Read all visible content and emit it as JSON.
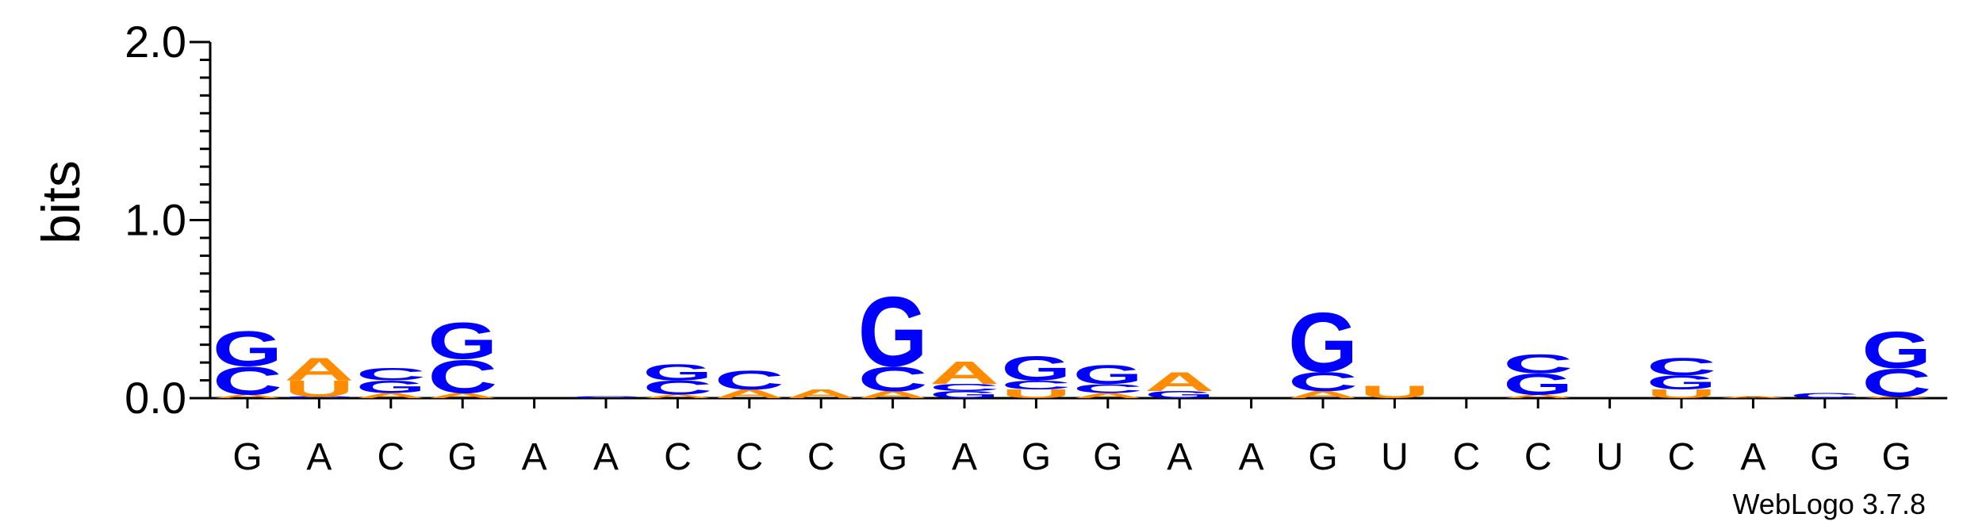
{
  "chart_data": {
    "type": "sequence-logo",
    "ylabel": "bits",
    "ylim": [
      0,
      2.0
    ],
    "yticks": [
      {
        "value": 0.0,
        "label": "0.0"
      },
      {
        "value": 1.0,
        "label": "1.0"
      },
      {
        "value": 2.0,
        "label": "2.0"
      }
    ],
    "minor_tick_step": 0.1,
    "colors": {
      "A": "#ff8c00",
      "U": "#ff8c00",
      "C": "#0000ff",
      "G": "#0000ff"
    },
    "consensus": [
      "G",
      "A",
      "C",
      "G",
      "A",
      "A",
      "C",
      "C",
      "C",
      "G",
      "A",
      "G",
      "G",
      "A",
      "A",
      "G",
      "U",
      "C",
      "C",
      "U",
      "C",
      "A",
      "G",
      "G"
    ],
    "positions": [
      {
        "pos": 1,
        "stack": [
          {
            "letter": "A",
            "bits": 0.02
          },
          {
            "letter": "C",
            "bits": 0.16
          },
          {
            "letter": "G",
            "bits": 0.2
          }
        ]
      },
      {
        "pos": 2,
        "stack": [
          {
            "letter": "C",
            "bits": 0.01
          },
          {
            "letter": "U",
            "bits": 0.09
          },
          {
            "letter": "A",
            "bits": 0.13
          }
        ]
      },
      {
        "pos": 3,
        "stack": [
          {
            "letter": "A",
            "bits": 0.03
          },
          {
            "letter": "G",
            "bits": 0.07
          },
          {
            "letter": "C",
            "bits": 0.07
          }
        ]
      },
      {
        "pos": 4,
        "stack": [
          {
            "letter": "A",
            "bits": 0.03
          },
          {
            "letter": "C",
            "bits": 0.19
          },
          {
            "letter": "G",
            "bits": 0.21
          }
        ]
      },
      {
        "pos": 5,
        "stack": []
      },
      {
        "pos": 6,
        "stack": [
          {
            "letter": "C",
            "bits": 0.01
          }
        ]
      },
      {
        "pos": 7,
        "stack": [
          {
            "letter": "A",
            "bits": 0.02
          },
          {
            "letter": "C",
            "bits": 0.08
          },
          {
            "letter": "G",
            "bits": 0.09
          }
        ]
      },
      {
        "pos": 8,
        "stack": [
          {
            "letter": "A",
            "bits": 0.05
          },
          {
            "letter": "C",
            "bits": 0.11
          }
        ]
      },
      {
        "pos": 9,
        "stack": [
          {
            "letter": "A",
            "bits": 0.05
          }
        ]
      },
      {
        "pos": 10,
        "stack": [
          {
            "letter": "A",
            "bits": 0.04
          },
          {
            "letter": "C",
            "bits": 0.14
          },
          {
            "letter": "G",
            "bits": 0.4
          }
        ]
      },
      {
        "pos": 11,
        "stack": [
          {
            "letter": "G",
            "bits": 0.04
          },
          {
            "letter": "C",
            "bits": 0.04
          },
          {
            "letter": "A",
            "bits": 0.13
          }
        ]
      },
      {
        "pos": 12,
        "stack": [
          {
            "letter": "U",
            "bits": 0.05
          },
          {
            "letter": "C",
            "bits": 0.05
          },
          {
            "letter": "G",
            "bits": 0.14
          }
        ]
      },
      {
        "pos": 13,
        "stack": [
          {
            "letter": "A",
            "bits": 0.03
          },
          {
            "letter": "C",
            "bits": 0.05
          },
          {
            "letter": "G",
            "bits": 0.11
          }
        ]
      },
      {
        "pos": 14,
        "stack": [
          {
            "letter": "G",
            "bits": 0.04
          },
          {
            "letter": "A",
            "bits": 0.11
          }
        ]
      },
      {
        "pos": 15,
        "stack": []
      },
      {
        "pos": 16,
        "stack": [
          {
            "letter": "A",
            "bits": 0.04
          },
          {
            "letter": "C",
            "bits": 0.11
          },
          {
            "letter": "G",
            "bits": 0.34
          }
        ]
      },
      {
        "pos": 17,
        "stack": [
          {
            "letter": "U",
            "bits": 0.07
          }
        ]
      },
      {
        "pos": 18,
        "stack": []
      },
      {
        "pos": 19,
        "stack": [
          {
            "letter": "A",
            "bits": 0.02
          },
          {
            "letter": "G",
            "bits": 0.12
          },
          {
            "letter": "C",
            "bits": 0.11
          }
        ]
      },
      {
        "pos": 20,
        "stack": []
      },
      {
        "pos": 21,
        "stack": [
          {
            "letter": "U",
            "bits": 0.05
          },
          {
            "letter": "G",
            "bits": 0.08
          },
          {
            "letter": "C",
            "bits": 0.1
          }
        ]
      },
      {
        "pos": 22,
        "stack": [
          {
            "letter": "A",
            "bits": 0.01
          }
        ]
      },
      {
        "pos": 23,
        "stack": [
          {
            "letter": "C",
            "bits": 0.03
          }
        ]
      },
      {
        "pos": 24,
        "stack": [
          {
            "letter": "A",
            "bits": 0.01
          },
          {
            "letter": "C",
            "bits": 0.16
          },
          {
            "letter": "G",
            "bits": 0.21
          }
        ]
      }
    ]
  },
  "credit": "WebLogo 3.7.8"
}
